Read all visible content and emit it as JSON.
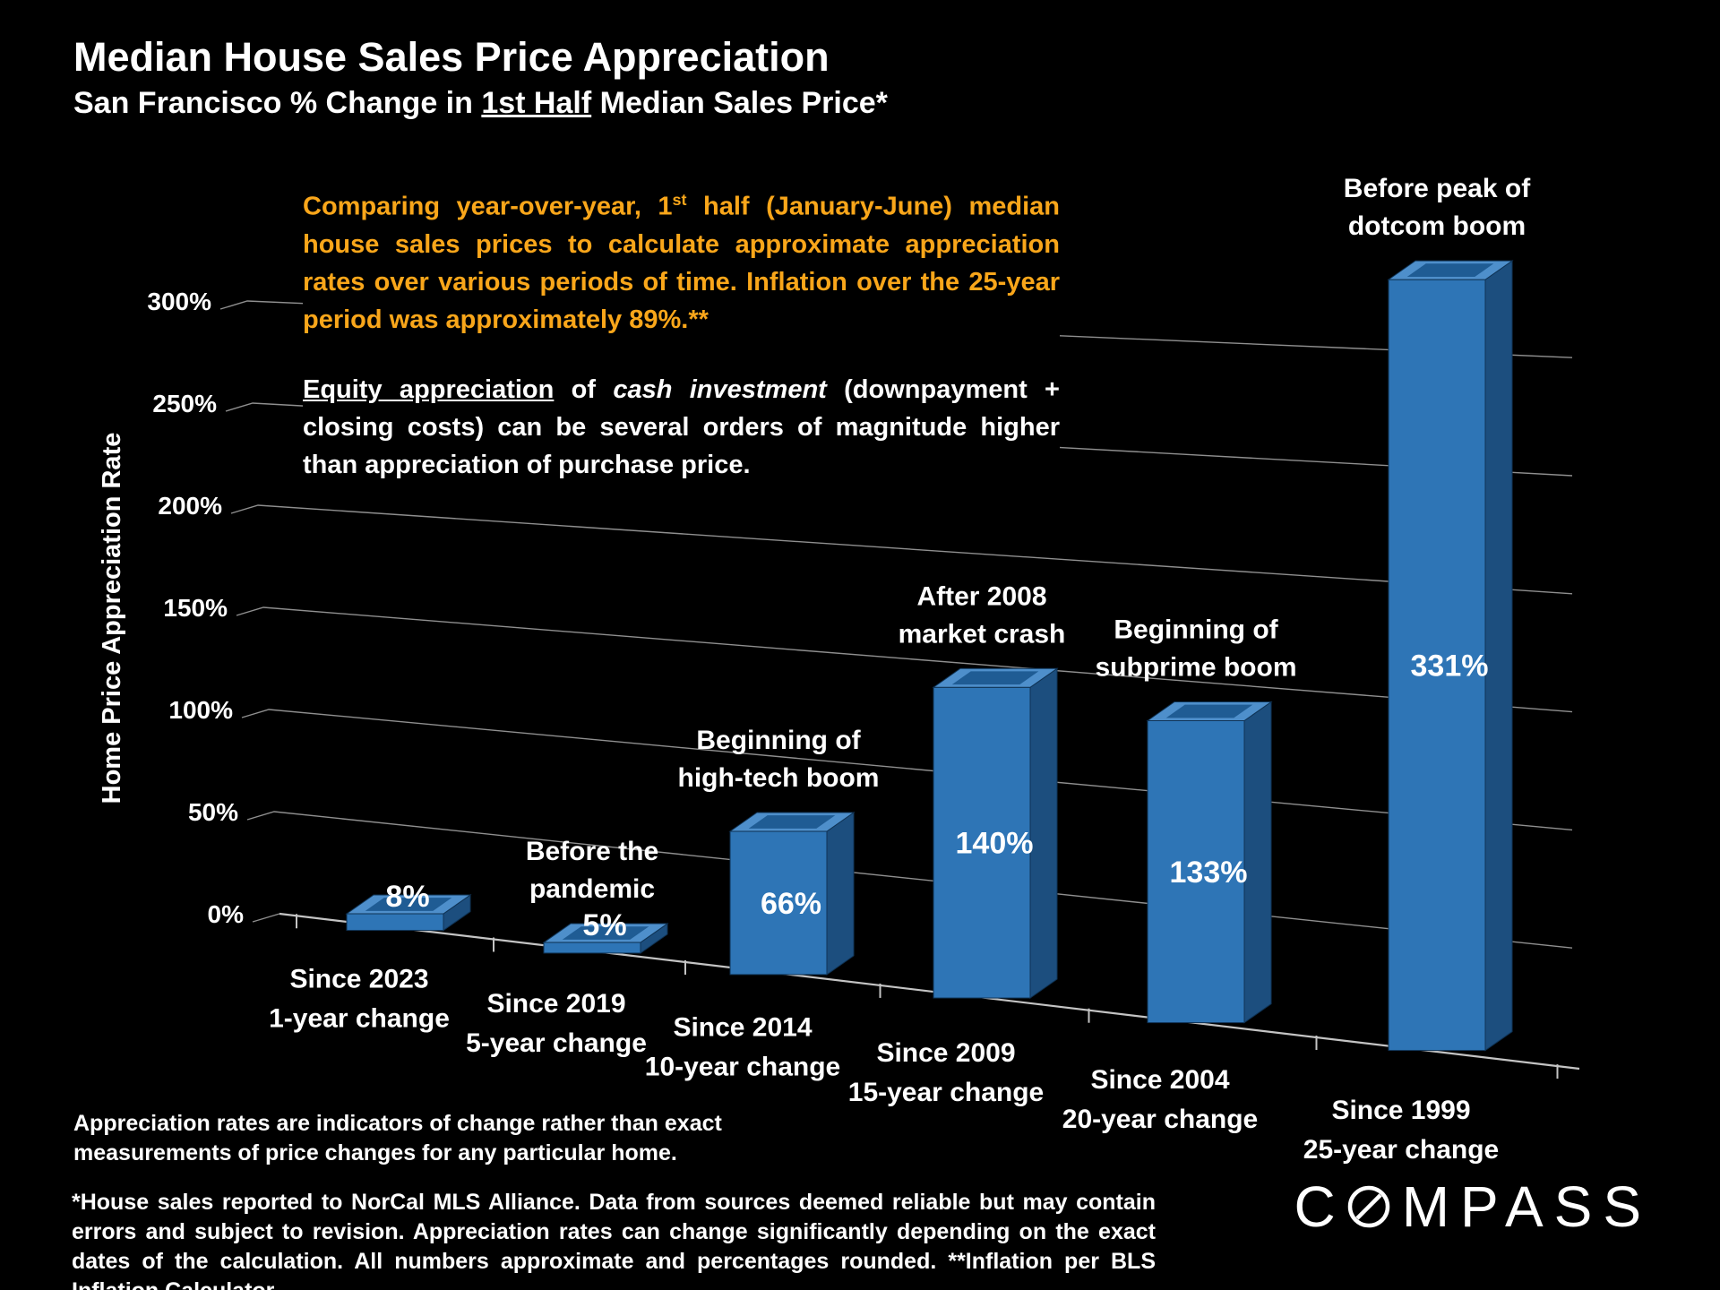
{
  "header": {
    "title": "Median House Sales Price Appreciation",
    "subtitle": {
      "prefix": "San Francisco % Change in ",
      "underlined": "1st Half",
      "suffix": " Median Sales Price*"
    }
  },
  "commentary": {
    "orange": {
      "part1": "Comparing year-over-year, 1",
      "sup": "st",
      "part2": " half (January-June) median house sales prices to calculate approximate appreciation rates over various periods of time. Inflation over the 25-year period was approximately 89%.**"
    },
    "white": {
      "underlined": "Equity appreciation",
      "part2": " of ",
      "italic": "cash investment",
      "part3": " (downpayment + closing costs) can be several orders of magnitude higher than appreciation of purchase price."
    }
  },
  "chart_data": {
    "type": "bar",
    "title": "Median House Sales Price Appreciation — San Francisco % Change in 1st Half Median Sales Price",
    "ylabel": "Home Price Appreciation Rate",
    "xlabel": "",
    "ylim": [
      0,
      300
    ],
    "y_tick_step": 50,
    "y_ticks": [
      "0%",
      "50%",
      "100%",
      "150%",
      "200%",
      "250%",
      "300%"
    ],
    "grid": true,
    "legend": false,
    "bars": [
      {
        "category_line1": "Since 2023",
        "category_line2": "1-year change",
        "value": 8,
        "label": "8%",
        "annotation_lines": []
      },
      {
        "category_line1": "Since 2019",
        "category_line2": "5-year change",
        "value": 5,
        "label": "5%",
        "annotation_lines": [
          "Before the",
          "pandemic"
        ]
      },
      {
        "category_line1": "Since 2014",
        "category_line2": "10-year change",
        "value": 66,
        "label": "66%",
        "annotation_lines": [
          "Beginning of",
          "high-tech boom"
        ]
      },
      {
        "category_line1": "Since 2009",
        "category_line2": "15-year change",
        "value": 140,
        "label": "140%",
        "annotation_lines": [
          "After 2008",
          "market crash"
        ]
      },
      {
        "category_line1": "Since 2004",
        "category_line2": "20-year change",
        "value": 133,
        "label": "133%",
        "annotation_lines": [
          "Beginning of",
          "subprime boom"
        ]
      },
      {
        "category_line1": "Since 1999",
        "category_line2": "25-year change",
        "value": 331,
        "label": "331%",
        "annotation_lines": [
          "Before peak of",
          "dotcom boom"
        ]
      }
    ]
  },
  "footnotes": {
    "note1": "Appreciation rates are indicators of change rather than exact\nmeasurements of price changes for any particular home.",
    "note2": "*House sales reported to NorCal MLS Alliance. Data from sources deemed reliable but may contain errors and subject to revision. Appreciation rates can change significantly depending on the exact dates of the calculation. All numbers  approximate and percentages rounded. **Inflation per BLS Inflation Calculator."
  },
  "logo": {
    "before_o": "C",
    "after_o": "MPASS"
  },
  "colors": {
    "background": "#000000",
    "text": "#FFFFFF",
    "accent_orange": "#F9A61A",
    "bar_front": "#2E75B6",
    "bar_side": "#1C4E7E",
    "bar_top": "#4E8FCB",
    "bar_top_inner": "#1F5C94",
    "bar_edge": "#0F3355",
    "grid": "#8F8F8F",
    "axis": "#C4C4C4"
  }
}
